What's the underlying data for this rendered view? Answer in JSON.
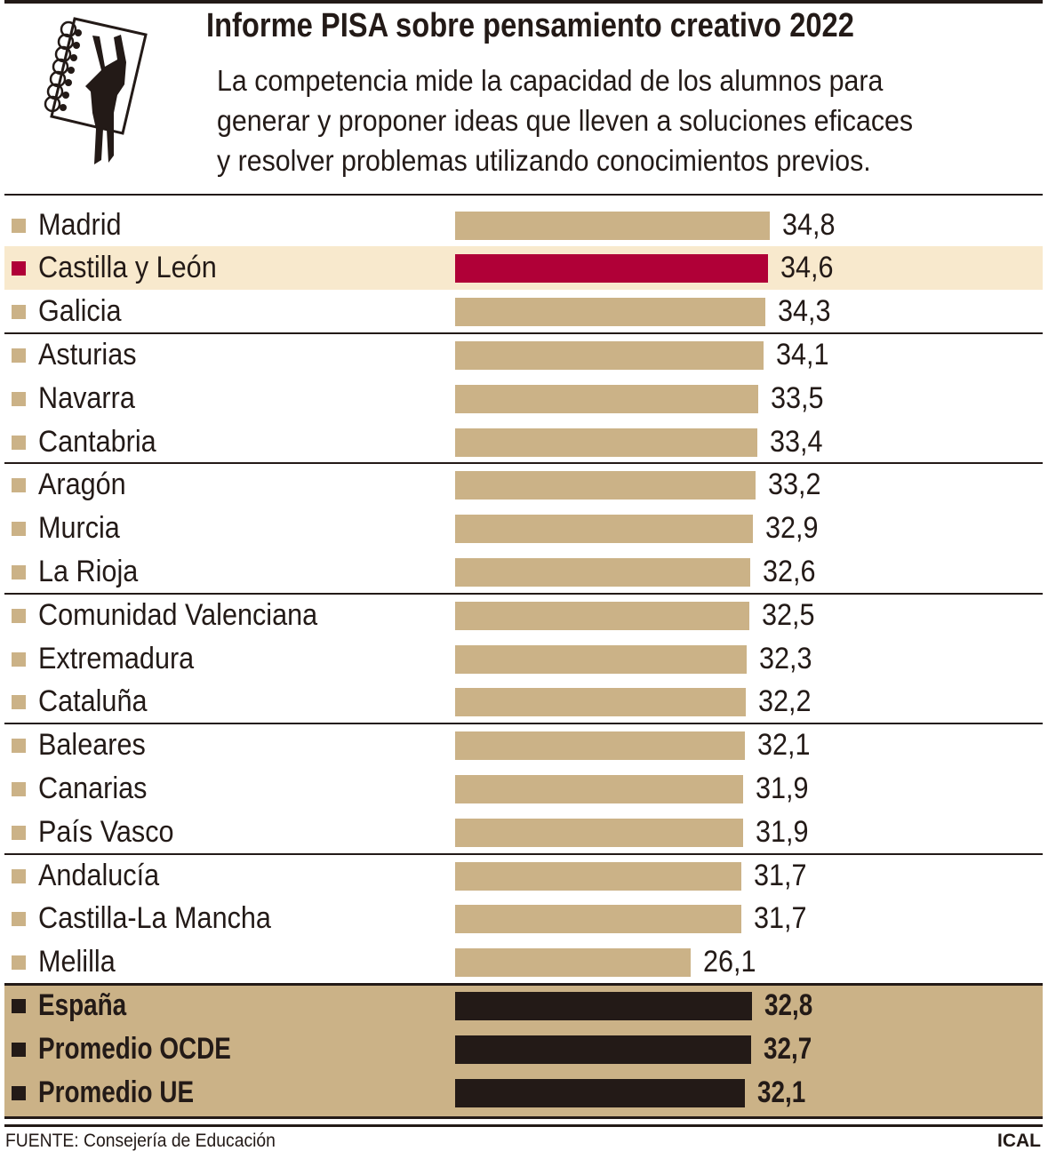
{
  "chart_data": {
    "type": "bar",
    "orientation": "horizontal",
    "title": "Informe PISA sobre pensamiento creativo 2022",
    "subtitle": "La competencia mide la capacidad de los alumnos para\ngenerar y proponer ideas que lleven a soluciones eficaces\ny resolver problemas utilizando conocimientos previos.",
    "xlim": [
      0,
      34.8
    ],
    "grid": false,
    "categories": [
      "Madrid",
      "Castilla y León",
      "Galicia",
      "Asturias",
      "Navarra",
      "Cantabria",
      "Aragón",
      "Murcia",
      "La Rioja",
      "Comunidad Valenciana",
      "Extremadura",
      "Cataluña",
      "Baleares",
      "Canarias",
      "País Vasco",
      "Andalucía",
      "Castilla-La Mancha",
      "Melilla"
    ],
    "values": [
      34.8,
      34.6,
      34.3,
      34.1,
      33.5,
      33.4,
      33.2,
      32.9,
      32.6,
      32.5,
      32.3,
      32.2,
      32.1,
      31.9,
      31.9,
      31.7,
      31.7,
      26.1
    ],
    "value_labels": [
      "34,8",
      "34,6",
      "34,3",
      "34,1",
      "33,5",
      "33,4",
      "33,2",
      "32,9",
      "32,6",
      "32,5",
      "32,3",
      "32,2",
      "32,1",
      "31,9",
      "31,9",
      "31,7",
      "31,7",
      "26,1"
    ],
    "highlight": "Castilla y León",
    "summary": {
      "categories": [
        "España",
        "Promedio OCDE",
        "Promedio UE"
      ],
      "values": [
        32.8,
        32.7,
        32.1
      ],
      "value_labels": [
        "32,8",
        "32,7",
        "32,1"
      ]
    },
    "colors": {
      "bar": "#cbb287",
      "highlight_bar": "#b00037",
      "highlight_row": "#f8e9cd",
      "summary_bar": "#231a17",
      "summary_bg": "#cbb287"
    }
  },
  "footer": {
    "source": "FUENTE: Consejería de Educación",
    "credit": "ICAL"
  }
}
